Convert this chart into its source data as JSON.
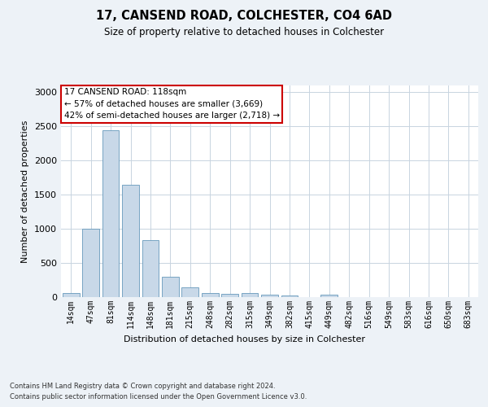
{
  "title": "17, CANSEND ROAD, COLCHESTER, CO4 6AD",
  "subtitle": "Size of property relative to detached houses in Colchester",
  "xlabel": "Distribution of detached houses by size in Colchester",
  "ylabel": "Number of detached properties",
  "footer_line1": "Contains HM Land Registry data © Crown copyright and database right 2024.",
  "footer_line2": "Contains public sector information licensed under the Open Government Licence v3.0.",
  "categories": [
    "14sqm",
    "47sqm",
    "81sqm",
    "114sqm",
    "148sqm",
    "181sqm",
    "215sqm",
    "248sqm",
    "282sqm",
    "315sqm",
    "349sqm",
    "382sqm",
    "415sqm",
    "449sqm",
    "482sqm",
    "516sqm",
    "549sqm",
    "583sqm",
    "616sqm",
    "650sqm",
    "683sqm"
  ],
  "values": [
    55,
    1000,
    2450,
    1650,
    840,
    300,
    145,
    55,
    45,
    55,
    35,
    25,
    0,
    35,
    0,
    0,
    0,
    0,
    0,
    0,
    0
  ],
  "bar_color": "#c8d8e8",
  "bar_edge_color": "#6699bb",
  "annotation_text_line1": "17 CANSEND ROAD: 118sqm",
  "annotation_text_line2": "← 57% of detached houses are smaller (3,669)",
  "annotation_text_line3": "42% of semi-detached houses are larger (2,718) →",
  "annotation_box_color": "#cc0000",
  "ylim": [
    0,
    3100
  ],
  "yticks": [
    0,
    500,
    1000,
    1500,
    2000,
    2500,
    3000
  ],
  "bg_color": "#edf2f7",
  "plot_bg_color": "#ffffff",
  "grid_color": "#c8d4e0"
}
